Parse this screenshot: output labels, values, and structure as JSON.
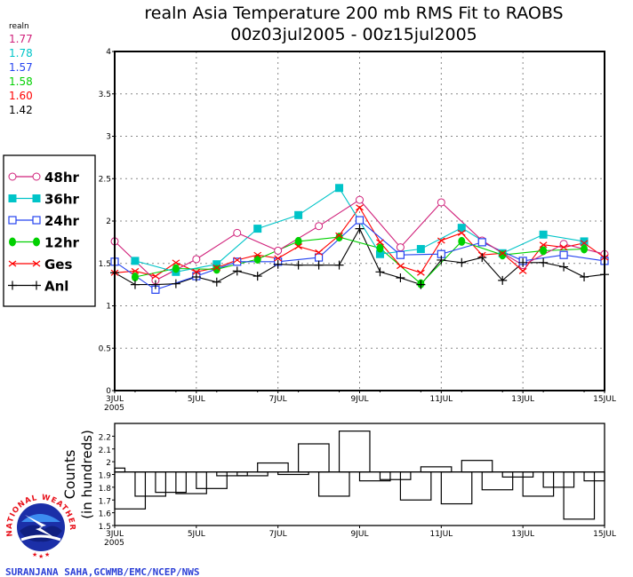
{
  "colors": {
    "48hr": "#d0207a",
    "36hr": "#00c4c8",
    "24hr": "#2443f0",
    "12hr": "#00d000",
    "Ges": "#ff0000",
    "Anl": "#000000"
  },
  "header": {
    "title_line1": "realn Asia Temperature 200 mb RMS Fit to RAOBS",
    "title_line2": "00z03jul2005 - 00z15jul2005"
  },
  "summary": {
    "label": "realn",
    "values": [
      {
        "series": "48hr",
        "value": "1.77"
      },
      {
        "series": "36hr",
        "value": "1.78"
      },
      {
        "series": "24hr",
        "value": "1.57"
      },
      {
        "series": "12hr",
        "value": "1.58"
      },
      {
        "series": "Ges",
        "value": "1.60"
      },
      {
        "series": "Anl",
        "value": "1.42"
      }
    ]
  },
  "legend": {
    "placement": "left",
    "items": [
      "48hr",
      "36hr",
      "24hr",
      "12hr",
      "Ges",
      "Anl"
    ]
  },
  "footer": {
    "credit": "SURANJANA SAHA,GCWMB/EMC/NCEP/NWS",
    "logo_text": "NATIONAL WEATHER SERVICE"
  },
  "chart_data": [
    {
      "type": "line",
      "title": "realn Asia Temperature 200 mb RMS Fit to RAOBS",
      "xlabel": "",
      "ylabel": "",
      "x_unit": "day of July 2005",
      "xlim": [
        3,
        15
      ],
      "ylim": [
        0,
        4
      ],
      "yticks": [
        "0",
        "0.5",
        "1",
        "1.5",
        "2",
        "2.5",
        "3",
        "3.5",
        "4"
      ],
      "xticks": [
        {
          "day": 3,
          "label": "3JUL",
          "sub": "2005"
        },
        {
          "day": 5,
          "label": "5JUL"
        },
        {
          "day": 7,
          "label": "7JUL"
        },
        {
          "day": 9,
          "label": "9JUL"
        },
        {
          "day": 11,
          "label": "11JUL"
        },
        {
          "day": 13,
          "label": "13JUL"
        },
        {
          "day": 15,
          "label": "15JUL"
        }
      ],
      "grid": true,
      "series": [
        {
          "name": "48hr",
          "marker": "open-circle",
          "x": [
            3,
            4,
            5,
            6,
            7,
            8,
            9,
            10,
            11,
            12,
            13,
            14,
            15
          ],
          "values": [
            1.76,
            1.3,
            1.55,
            1.86,
            1.65,
            1.94,
            2.25,
            1.69,
            2.22,
            1.77,
            1.48,
            1.73,
            1.61
          ]
        },
        {
          "name": "36hr",
          "marker": "filled-square",
          "x": [
            3.5,
            4.5,
            5.5,
            6.5,
            7.5,
            8.5,
            9.5,
            10.5,
            11.5,
            12.5,
            13.5,
            14.5
          ],
          "values": [
            1.53,
            1.4,
            1.49,
            1.91,
            2.07,
            2.39,
            1.61,
            1.67,
            1.92,
            1.62,
            1.84,
            1.76
          ]
        },
        {
          "name": "24hr",
          "marker": "open-square",
          "x": [
            3,
            4,
            5,
            6,
            7,
            8,
            9,
            10,
            11,
            12,
            13,
            14,
            15
          ],
          "values": [
            1.52,
            1.19,
            1.35,
            1.52,
            1.52,
            1.57,
            2.01,
            1.6,
            1.61,
            1.75,
            1.53,
            1.6,
            1.53
          ]
        },
        {
          "name": "12hr",
          "marker": "filled-circle",
          "x": [
            3.5,
            4.5,
            5.5,
            6.5,
            7.5,
            8.5,
            9.5,
            10.5,
            11.5,
            12.5,
            13.5,
            14.5
          ],
          "values": [
            1.34,
            1.44,
            1.43,
            1.55,
            1.76,
            1.81,
            1.68,
            1.26,
            1.76,
            1.6,
            1.65,
            1.67
          ]
        },
        {
          "name": "Ges",
          "marker": "x",
          "x": [
            3,
            3.5,
            4,
            4.5,
            5,
            5.5,
            6,
            6.5,
            7,
            7.5,
            8,
            8.5,
            9,
            9.5,
            10,
            10.5,
            11,
            11.5,
            12,
            12.5,
            13,
            13.5,
            14,
            14.5,
            15
          ],
          "values": [
            1.39,
            1.41,
            1.35,
            1.51,
            1.4,
            1.45,
            1.54,
            1.6,
            1.56,
            1.7,
            1.63,
            1.83,
            2.16,
            1.75,
            1.47,
            1.39,
            1.77,
            1.86,
            1.6,
            1.62,
            1.41,
            1.72,
            1.69,
            1.74,
            1.57
          ]
        },
        {
          "name": "Anl",
          "marker": "plus",
          "x": [
            3,
            3.5,
            4,
            4.5,
            5,
            5.5,
            6,
            6.5,
            7,
            7.5,
            8,
            8.5,
            9,
            9.5,
            10,
            10.5,
            11,
            11.5,
            12,
            12.5,
            13,
            13.5,
            14,
            14.5,
            15
          ],
          "values": [
            1.39,
            1.25,
            1.25,
            1.26,
            1.34,
            1.28,
            1.41,
            1.35,
            1.49,
            1.48,
            1.48,
            1.48,
            1.91,
            1.4,
            1.33,
            1.25,
            1.54,
            1.51,
            1.57,
            1.3,
            1.51,
            1.51,
            1.46,
            1.34,
            1.37
          ]
        }
      ]
    },
    {
      "type": "bar",
      "title": "",
      "ylabel": "Counts",
      "ylabel2": "(in hundreds)",
      "xlim": [
        3,
        15
      ],
      "ylim": [
        1.5,
        2.3
      ],
      "yticks": [
        "1.5",
        "1.6",
        "1.7",
        "1.8",
        "1.9",
        "2",
        "2.1",
        "2.2"
      ],
      "xticks": [
        {
          "day": 3,
          "label": "3JUL",
          "sub": "2005"
        },
        {
          "day": 5,
          "label": "5JUL"
        },
        {
          "day": 7,
          "label": "7JUL"
        },
        {
          "day": 9,
          "label": "9JUL"
        },
        {
          "day": 11,
          "label": "11JUL"
        },
        {
          "day": 13,
          "label": "13JUL"
        },
        {
          "day": 15,
          "label": "15JUL"
        }
      ],
      "reference_line": 1.92,
      "x": [
        3,
        3.5,
        4,
        4.5,
        5,
        5.5,
        6,
        6.5,
        7,
        7.5,
        8,
        8.5,
        9,
        9.5,
        10,
        10.5,
        11,
        11.5,
        12,
        12.5,
        13,
        13.5,
        14,
        14.5,
        15
      ],
      "values": [
        1.95,
        1.63,
        1.73,
        1.76,
        1.75,
        1.79,
        1.89,
        1.89,
        1.99,
        1.9,
        2.14,
        1.73,
        2.24,
        1.85,
        1.86,
        1.7,
        1.96,
        1.67,
        2.01,
        1.78,
        1.88,
        1.73,
        1.8,
        1.55,
        1.85
      ]
    }
  ]
}
